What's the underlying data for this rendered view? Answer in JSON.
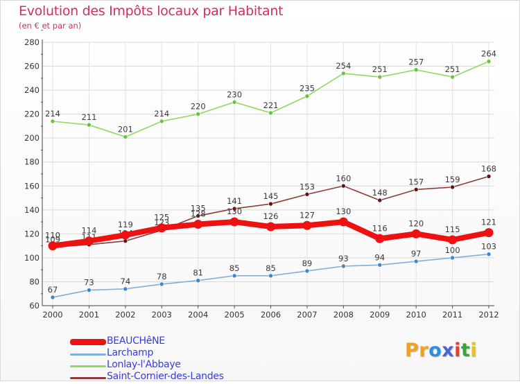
{
  "title": "Evolution des Impôts locaux par Habitant",
  "subtitle": "(en € et par an)",
  "brand": {
    "name": "Proxiti",
    "letters": [
      "P",
      "r",
      "o",
      "x",
      "i",
      "t",
      "i"
    ],
    "colors": [
      "#f2a01e",
      "#f2a01e",
      "#2f8fd8",
      "#4a66cc",
      "#e93a2a",
      "#3aa53a",
      "#e9c21a"
    ]
  },
  "chart_data": {
    "type": "line",
    "title": "Evolution des Impôts locaux par Habitant",
    "subtitle": "(en € et par an)",
    "xlabel": "",
    "ylabel": "",
    "x": [
      "2000",
      "2001",
      "2002",
      "2003",
      "2004",
      "2005",
      "2006",
      "2007",
      "2008",
      "2009",
      "2010",
      "2011",
      "2012"
    ],
    "ylim": [
      60,
      280
    ],
    "yticks": [
      60,
      80,
      100,
      120,
      140,
      160,
      180,
      200,
      220,
      240,
      260,
      280
    ],
    "grid": true,
    "legend_position": "bottom-left",
    "series": [
      {
        "name": "Lonlay-l'Abbaye",
        "color": "#90d860",
        "marker": "#6cc23e",
        "values": [
          214,
          211,
          201,
          214,
          220,
          230,
          221,
          235,
          254,
          251,
          257,
          251,
          264
        ],
        "labels": [
          "214",
          "211",
          "201",
          "214",
          "220",
          "230",
          "221",
          "235",
          "254",
          "251",
          "257",
          "251",
          "264"
        ]
      },
      {
        "name": "Saint-Cornier-des-Landes",
        "color": "#8a3c3c",
        "marker": "#5e1414",
        "values": [
          109,
          111,
          114,
          123,
          135,
          141,
          145,
          153,
          160,
          148,
          157,
          159,
          168
        ],
        "labels": [
          "109",
          "111",
          "114",
          "123",
          "135",
          "141",
          "145",
          "153",
          "160",
          "148",
          "157",
          "159",
          "168"
        ]
      },
      {
        "name": "Larchamp",
        "color": "#7fb0dc",
        "marker": "#3f87c9",
        "values": [
          67,
          73,
          74,
          78,
          81,
          85,
          85,
          89,
          93,
          94,
          97,
          100,
          103
        ],
        "labels": [
          "67",
          "73",
          "74",
          "78",
          "81",
          "85",
          "85",
          "89",
          "93",
          "94",
          "97",
          "100",
          "103"
        ]
      },
      {
        "name": "BEAUCHêNE",
        "color": "#ee1111",
        "marker": "#ee1111",
        "values": [
          110,
          114,
          119,
          125,
          128,
          130,
          126,
          127,
          130,
          116,
          120,
          115,
          121
        ],
        "labels": [
          "110",
          "114",
          "119",
          "125",
          "128",
          "130",
          "126",
          "127",
          "130",
          "116",
          "120",
          "115",
          "121"
        ]
      }
    ]
  },
  "legend": [
    {
      "name": "BEAUCHêNE",
      "color": "#ee1111",
      "thick": true
    },
    {
      "name": "Larchamp",
      "color": "#7fb0dc",
      "thick": false
    },
    {
      "name": "Lonlay-l'Abbaye",
      "color": "#90d860",
      "thick": false
    },
    {
      "name": "Saint-Cornier-des-Landes",
      "color": "#8a3c3c",
      "thick": false
    }
  ]
}
